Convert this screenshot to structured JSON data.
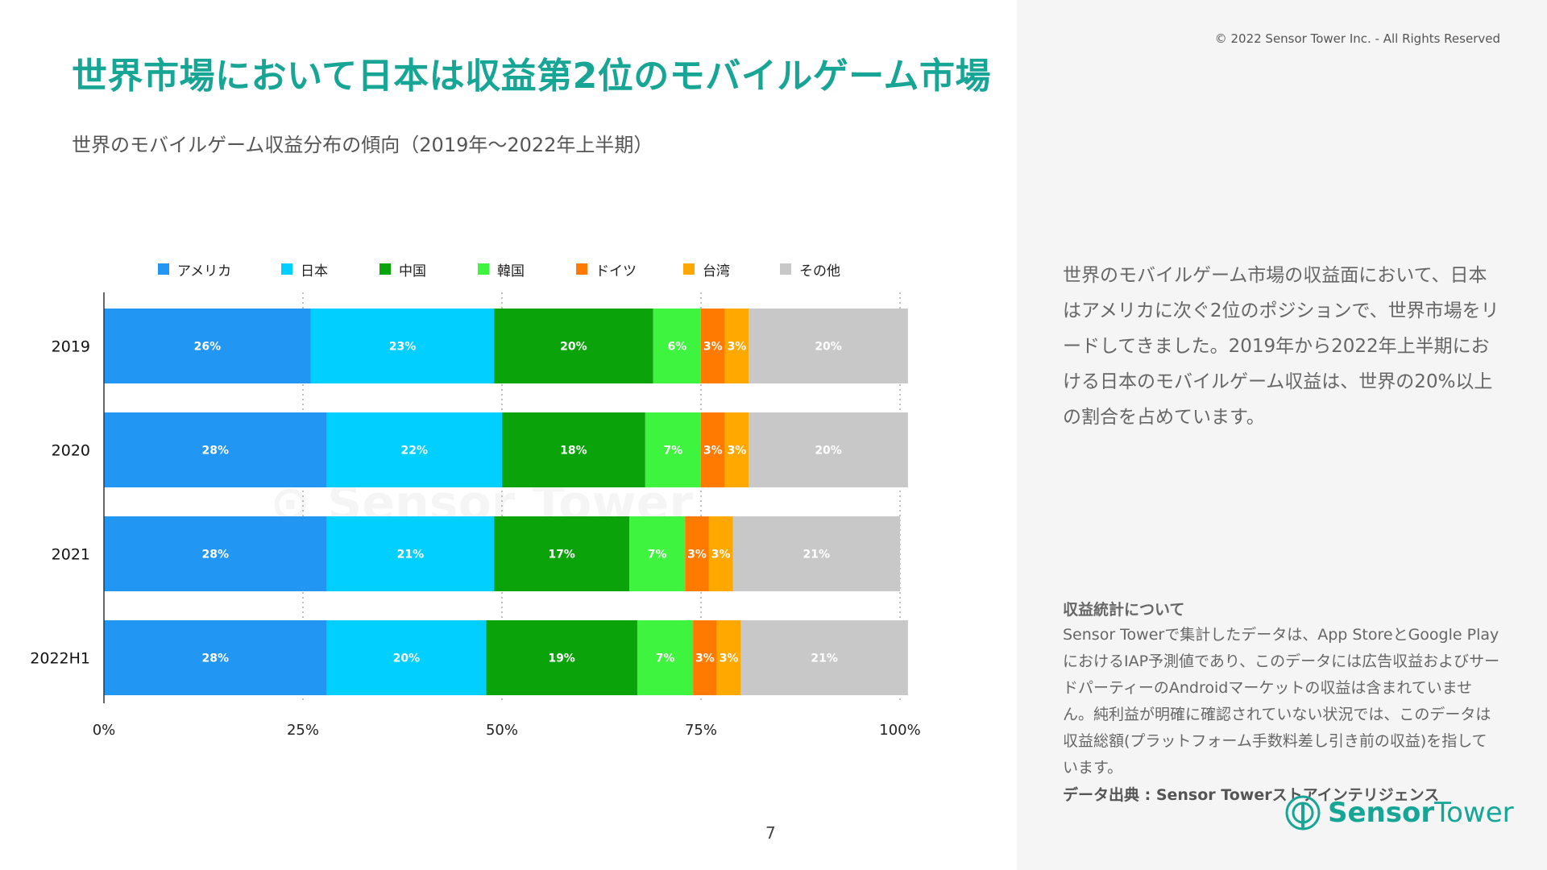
{
  "header": {
    "title": "世界市場において日本は収益第2位のモバイルゲーム市場",
    "copyright": "© 2022 Sensor Tower Inc. - All Rights Reserved"
  },
  "panel": {
    "description": "世界のモバイルゲーム市場の収益面において、日本はアメリカに次ぐ2位のポジションで、世界市場をリードしてきました。2019年から2022年上半期における日本のモバイルゲーム収益は、世界の20%以上の割合を占めています。",
    "note_title": "収益統計について",
    "note_text": "Sensor Towerで集計したデータは、App StoreとGoogle PlayにおけるIAP予測値であり、このデータには広告収益およびサードパーティーのAndroidマーケットの収益は含まれていません。純利益が明確に確認されていない状況では、このデータは収益総額(プラットフォーム手数料差し引き前の収益)を指しています。",
    "source": "データ出典 : Sensor Towerストアインテリジェンス"
  },
  "page_number": "7",
  "logo": {
    "word1": "Sensor",
    "word2": "Tower",
    "icon": "sensor-tower-logo-icon"
  },
  "colors": {
    "accent": "#17a596",
    "アメリカ": "#2196f3",
    "日本": "#00cfff",
    "中国": "#0aa30a",
    "韓国": "#3ef43e",
    "ドイツ": "#ff7a00",
    "台湾": "#ffa800",
    "その他": "#c8c8c8"
  },
  "chart_data": {
    "type": "bar",
    "orientation": "horizontal",
    "stacked": true,
    "title": "世界のモバイルゲーム収益分布の傾向（2019年～2022年上半期）",
    "categories": [
      "2019",
      "2020",
      "2021",
      "2022H1"
    ],
    "series": [
      {
        "name": "アメリカ",
        "values": [
          26,
          28,
          28,
          28
        ],
        "labels": [
          "26%",
          "28%",
          "28%",
          "28%"
        ]
      },
      {
        "name": "日本",
        "values": [
          23,
          22,
          21,
          20
        ],
        "labels": [
          "23%",
          "22%",
          "21%",
          "20%"
        ]
      },
      {
        "name": "中国",
        "values": [
          20,
          18,
          17,
          19
        ],
        "labels": [
          "20%",
          "18%",
          "17%",
          "19%"
        ]
      },
      {
        "name": "韓国",
        "values": [
          6,
          7,
          7,
          7
        ],
        "labels": [
          "6%",
          "7%",
          "7%",
          "7%"
        ]
      },
      {
        "name": "ドイツ",
        "values": [
          3,
          3,
          3,
          3
        ],
        "labels": [
          "3%",
          "3%",
          "3%",
          "3%"
        ]
      },
      {
        "name": "台湾",
        "values": [
          3,
          3,
          3,
          3
        ],
        "labels": [
          "3%",
          "3%",
          "3%",
          "3%"
        ]
      },
      {
        "name": "その他",
        "values": [
          20,
          20,
          21,
          21
        ],
        "labels": [
          "20%",
          "20%",
          "21%",
          "21%"
        ]
      }
    ],
    "x_ticks": [
      "0%",
      "25%",
      "50%",
      "75%",
      "100%"
    ],
    "xlim": [
      0,
      100
    ],
    "grid": "vertical-dotted",
    "legend_position": "top"
  }
}
